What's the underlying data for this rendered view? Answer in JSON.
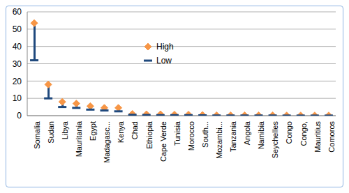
{
  "chart_data": {
    "type": "hilo",
    "categories": [
      "Somalia",
      "Sudan",
      "Libya",
      "Mauritania",
      "Egypt",
      "Madagasc...",
      "Kenya",
      "Chad",
      "Ethiopia",
      "Cape Verde",
      "Tunisia",
      "Morocco",
      "South...",
      "Mozambi...",
      "Tanzania",
      "Angola",
      "Namibia",
      "Seychelles",
      "Congo",
      "Congo,",
      "Mauritius",
      "Comoros"
    ],
    "series": [
      {
        "name": "High",
        "color": "#f79646",
        "marker": "diamond",
        "values": [
          53.5,
          18,
          8,
          7,
          5.5,
          4.5,
          4.5,
          1,
          0.8,
          0.8,
          0.6,
          0.6,
          0.4,
          0.2,
          0.2,
          0.2,
          0.2,
          0.2,
          0.1,
          0.1,
          0.1,
          0.1
        ]
      },
      {
        "name": "Low",
        "color": "#1f497d",
        "marker": "dash",
        "values": [
          32,
          10,
          5,
          4.5,
          3.5,
          3,
          2.5,
          0.5,
          0.4,
          0.3,
          0.3,
          0.3,
          0.2,
          0.1,
          0.1,
          0.1,
          0.1,
          0.1,
          0.05,
          0.05,
          0.05,
          0.05
        ]
      }
    ],
    "ylim": [
      0,
      60
    ],
    "yticks": [
      0,
      10,
      20,
      30,
      40,
      50,
      60
    ],
    "grid": true,
    "legend": "top"
  }
}
